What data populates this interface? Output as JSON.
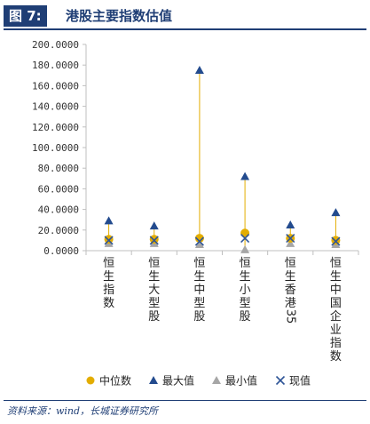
{
  "header": {
    "figure_tag": "图 7:",
    "title": "港股主要指数估值"
  },
  "source": "资料来源：wind，长城证券研究所",
  "colors": {
    "median": "#e3ad00",
    "max": "#234b8e",
    "min": "#a6a6a6",
    "current": "#2f5597",
    "stem": "#e3ad00",
    "header": "#1f3e75"
  },
  "chart_data": {
    "type": "scatter",
    "categories": [
      "恒生指数",
      "恒生大型股",
      "恒生中型股",
      "恒生小型股",
      "恒生香港35",
      "恒生中国企业指数"
    ],
    "ylim": [
      0,
      200
    ],
    "ytick_step": 20,
    "ytick_labels": [
      "0.0000",
      "20.0000",
      "40.0000",
      "60.0000",
      "80.0000",
      "100.0000",
      "120.0000",
      "140.0000",
      "160.0000",
      "180.0000",
      "200.0000"
    ],
    "grid": false,
    "legend_position": "bottom",
    "series": [
      {
        "name": "中位数",
        "marker": "circle",
        "values": [
          11,
          11,
          12,
          17,
          12,
          10
        ]
      },
      {
        "name": "最大值",
        "marker": "triangle",
        "values": [
          29,
          24,
          175,
          72,
          25,
          37
        ]
      },
      {
        "name": "最小值",
        "marker": "triangle",
        "values": [
          7,
          7,
          6,
          1,
          7,
          6
        ]
      },
      {
        "name": "现值",
        "marker": "x",
        "values": [
          10,
          10,
          9,
          12,
          12,
          9
        ]
      }
    ]
  }
}
